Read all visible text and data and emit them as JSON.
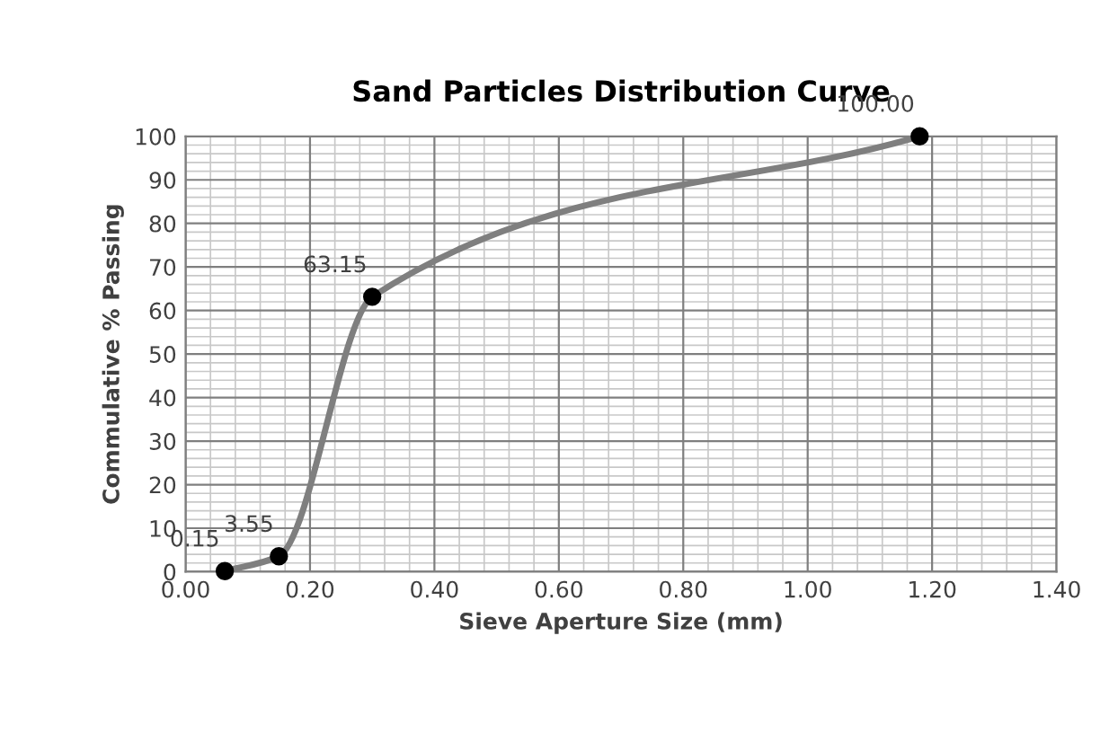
{
  "chart_data": {
    "type": "line",
    "title": "Sand Particles Distribution Curve",
    "xlabel": "Sieve Aperture Size (mm)",
    "ylabel": "Commulative % Passing",
    "x": [
      0.063,
      0.15,
      0.3,
      1.18
    ],
    "series": [
      {
        "color": "#7f7f7f",
        "values": [
          0.15,
          3.55,
          63.15,
          100
        ],
        "value_labels": [
          "0.15",
          "3.55",
          "63.15",
          "100.00"
        ]
      }
    ],
    "xlim": [
      0,
      1.4
    ],
    "xticks": [
      {
        "value": 0,
        "label": "0.00"
      },
      {
        "value": 0.2,
        "label": "0.20"
      },
      {
        "value": 0.4,
        "label": "0.40"
      },
      {
        "value": 0.6,
        "label": "0.60"
      },
      {
        "value": 0.8,
        "label": "0.80"
      },
      {
        "value": 1.0,
        "label": "1.00"
      },
      {
        "value": 1.2,
        "label": "1.20"
      },
      {
        "value": 1.4,
        "label": "1.40"
      }
    ],
    "ylim": [
      0,
      100
    ],
    "yticks": [
      0,
      10,
      20,
      30,
      40,
      50,
      60,
      70,
      80,
      90,
      100
    ],
    "grid": true,
    "marker": "circle",
    "line_style": "solid",
    "legend": false
  }
}
